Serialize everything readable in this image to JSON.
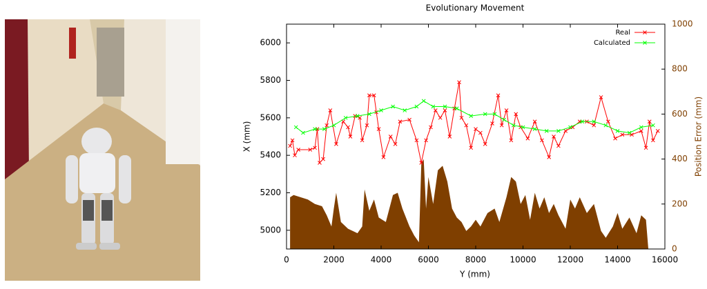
{
  "chart_data": {
    "type": "line",
    "title": "Evolutionary Movement",
    "x_label": "Y  (mm)",
    "y_label": "X (mm)",
    "y2_label": "Position Error (mm)",
    "xlim": [
      0,
      16000
    ],
    "xticks": [
      0,
      2000,
      4000,
      6000,
      8000,
      10000,
      12000,
      14000,
      16000
    ],
    "ylim": [
      4900,
      6100
    ],
    "yticks": [
      5000,
      5200,
      5400,
      5600,
      5800,
      6000
    ],
    "y2lim": [
      0,
      1000
    ],
    "y2ticks": [
      0,
      200,
      400,
      600,
      800,
      1000
    ],
    "legend": "upper right",
    "series": [
      {
        "name": "Real",
        "color": "#ff0000",
        "x": [
          150,
          250,
          350,
          500,
          1000,
          1200,
          1300,
          1400,
          1550,
          1700,
          1850,
          2100,
          2400,
          2600,
          2700,
          2900,
          3100,
          3200,
          3400,
          3500,
          3700,
          3800,
          3900,
          4100,
          4400,
          4600,
          4800,
          5200,
          5500,
          5700,
          5900,
          6100,
          6300,
          6500,
          6700,
          6900,
          7100,
          7300,
          7400,
          7600,
          7800,
          8000,
          8200,
          8400,
          8700,
          8950,
          9100,
          9300,
          9500,
          9700,
          9900,
          10200,
          10500,
          10800,
          11100,
          11300,
          11500,
          11800,
          12100,
          12400,
          12700,
          13000,
          13300,
          13600,
          13900,
          14200,
          14600,
          15000,
          15200,
          15350,
          15500,
          15700
        ],
        "values": [
          5450,
          5480,
          5400,
          5430,
          5430,
          5440,
          5540,
          5360,
          5380,
          5560,
          5640,
          5460,
          5580,
          5550,
          5500,
          5610,
          5600,
          5480,
          5560,
          5720,
          5720,
          5630,
          5540,
          5390,
          5500,
          5460,
          5580,
          5590,
          5480,
          5360,
          5480,
          5550,
          5640,
          5600,
          5640,
          5500,
          5650,
          5790,
          5600,
          5560,
          5440,
          5540,
          5520,
          5460,
          5570,
          5720,
          5560,
          5640,
          5480,
          5620,
          5550,
          5490,
          5580,
          5480,
          5390,
          5500,
          5450,
          5530,
          5550,
          5580,
          5580,
          5560,
          5710,
          5580,
          5490,
          5510,
          5510,
          5530,
          5440,
          5580,
          5480,
          5530
        ]
      },
      {
        "name": "Calculated",
        "color": "#00ff00",
        "x": [
          400,
          700,
          1200,
          1600,
          2000,
          2500,
          3000,
          3500,
          4000,
          4500,
          5000,
          5500,
          5800,
          6200,
          6700,
          7200,
          7800,
          8400,
          8800,
          9200,
          9600,
          10000,
          10500,
          11000,
          11500,
          12000,
          12500,
          13000,
          13500,
          14000,
          14500,
          15000,
          15500
        ],
        "values": [
          5550,
          5520,
          5540,
          5540,
          5560,
          5600,
          5610,
          5620,
          5640,
          5660,
          5640,
          5660,
          5690,
          5660,
          5660,
          5650,
          5610,
          5620,
          5620,
          5590,
          5560,
          5550,
          5540,
          5530,
          5530,
          5550,
          5580,
          5580,
          5560,
          5530,
          5520,
          5550,
          5560
        ]
      },
      {
        "type": "area",
        "axis": "y2",
        "color": "#7f3f00",
        "x": [
          150,
          300,
          600,
          900,
          1200,
          1500,
          1700,
          1900,
          2000,
          2100,
          2300,
          2600,
          3000,
          3200,
          3300,
          3500,
          3700,
          3900,
          4200,
          4500,
          4700,
          4900,
          5200,
          5400,
          5600,
          5700,
          5800,
          5900,
          6000,
          6200,
          6400,
          6600,
          6800,
          7000,
          7200,
          7400,
          7600,
          7800,
          8000,
          8200,
          8500,
          8800,
          9000,
          9300,
          9500,
          9700,
          9900,
          10100,
          10300,
          10500,
          10700,
          10900,
          11100,
          11300,
          11500,
          11800,
          12000,
          12200,
          12400,
          12700,
          13000,
          13300,
          13500,
          13800,
          14000,
          14200,
          14500,
          14800,
          15000,
          15200,
          15300
        ],
        "values": [
          230,
          240,
          230,
          220,
          200,
          190,
          150,
          100,
          180,
          250,
          120,
          90,
          70,
          100,
          265,
          170,
          220,
          140,
          120,
          240,
          250,
          180,
          100,
          60,
          30,
          380,
          400,
          180,
          320,
          200,
          350,
          370,
          300,
          180,
          140,
          120,
          80,
          100,
          130,
          100,
          160,
          180,
          120,
          230,
          320,
          300,
          200,
          240,
          130,
          250,
          180,
          230,
          160,
          200,
          150,
          90,
          220,
          180,
          230,
          160,
          200,
          80,
          50,
          100,
          160,
          90,
          140,
          70,
          150,
          130,
          0
        ]
      }
    ]
  }
}
